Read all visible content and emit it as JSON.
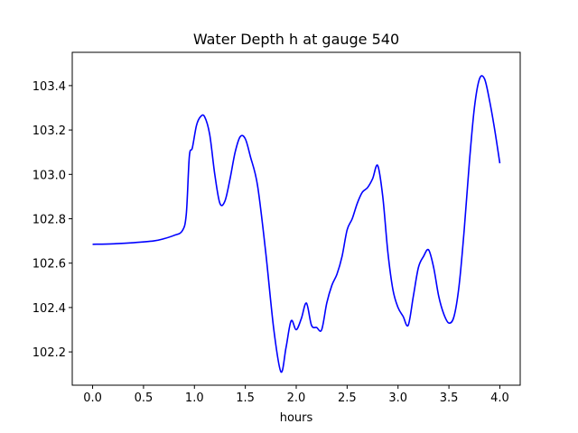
{
  "chart_data": {
    "type": "line",
    "title": "Water Depth h at gauge 540",
    "xlabel": "hours",
    "ylabel": "",
    "xlim": [
      -0.2,
      4.2
    ],
    "ylim": [
      102.05,
      103.55
    ],
    "xticks": [
      0.0,
      0.5,
      1.0,
      1.5,
      2.0,
      2.5,
      3.0,
      3.5,
      4.0
    ],
    "xtick_labels": [
      "0.0",
      "0.5",
      "1.0",
      "1.5",
      "2.0",
      "2.5",
      "3.0",
      "3.5",
      "4.0"
    ],
    "yticks": [
      102.2,
      102.4,
      102.6,
      102.8,
      103.0,
      103.2,
      103.4
    ],
    "ytick_labels": [
      "102.2",
      "102.4",
      "102.6",
      "102.8",
      "103.0",
      "103.2",
      "103.4"
    ],
    "grid": false,
    "series": [
      {
        "color": "#0000ff",
        "x": [
          0.0,
          0.2,
          0.4,
          0.6,
          0.7,
          0.8,
          0.88,
          0.92,
          0.95,
          0.98,
          1.02,
          1.06,
          1.1,
          1.15,
          1.2,
          1.25,
          1.3,
          1.35,
          1.4,
          1.45,
          1.5,
          1.55,
          1.62,
          1.7,
          1.78,
          1.85,
          1.9,
          1.95,
          2.0,
          2.05,
          2.1,
          2.15,
          2.2,
          2.25,
          2.3,
          2.35,
          2.4,
          2.45,
          2.5,
          2.55,
          2.6,
          2.65,
          2.7,
          2.75,
          2.8,
          2.85,
          2.9,
          2.95,
          3.0,
          3.05,
          3.1,
          3.15,
          3.2,
          3.25,
          3.3,
          3.35,
          3.4,
          3.45,
          3.5,
          3.55,
          3.6,
          3.65,
          3.7,
          3.75,
          3.8,
          3.85,
          3.9,
          3.95,
          4.0
        ],
        "y": [
          102.685,
          102.687,
          102.692,
          102.7,
          102.71,
          102.725,
          102.745,
          102.82,
          103.08,
          103.12,
          103.22,
          103.26,
          103.26,
          103.18,
          103.0,
          102.87,
          102.88,
          102.98,
          103.1,
          103.17,
          103.16,
          103.08,
          102.95,
          102.65,
          102.3,
          102.11,
          102.22,
          102.34,
          102.3,
          102.35,
          102.42,
          102.32,
          102.31,
          102.3,
          102.42,
          102.5,
          102.55,
          102.63,
          102.75,
          102.8,
          102.87,
          102.92,
          102.94,
          102.98,
          103.04,
          102.9,
          102.65,
          102.48,
          102.4,
          102.36,
          102.32,
          102.45,
          102.58,
          102.63,
          102.66,
          102.58,
          102.45,
          102.37,
          102.33,
          102.36,
          102.5,
          102.75,
          103.05,
          103.3,
          103.43,
          103.43,
          103.33,
          103.2,
          103.05
        ]
      }
    ]
  }
}
